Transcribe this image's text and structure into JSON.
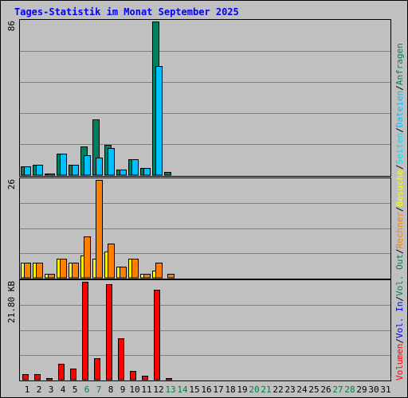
{
  "title": "Tages-Statistik im Monat September 2025",
  "colors": {
    "background": "#c0c0c0",
    "title": "#0000ff",
    "anfragen": "#008060",
    "dateien": "#00c0ff",
    "seiten": "#00e0ff",
    "besuche": "#ffff00",
    "rechner": "#ff8000",
    "volume": "#ff0000",
    "gridline": "#808080",
    "weekend_label": "#008040",
    "weekday_label": "#000000",
    "vol_out": "#008060",
    "vol_in": "#0000ff"
  },
  "legend": {
    "separator": "/",
    "anfragen": "Anfragen",
    "dateien": "Dateien",
    "seiten": "Seiten",
    "besuche": "Besuche",
    "rechner": "Rechner",
    "vol_out": "Vol. Out",
    "vol_in": "Vol. In",
    "volumen": "Volumen"
  },
  "chart_data": [
    {
      "type": "bar",
      "panel": "hits",
      "y_max_label": "86",
      "ylim": [
        0,
        86
      ],
      "categories": [
        "1",
        "2",
        "3",
        "4",
        "5",
        "6",
        "7",
        "8",
        "9",
        "10",
        "11",
        "12",
        "13",
        "14",
        "15",
        "16",
        "17",
        "18",
        "19",
        "20",
        "21",
        "22",
        "23",
        "24",
        "25",
        "26",
        "27",
        "28",
        "29",
        "30",
        "31"
      ],
      "series": [
        {
          "name": "Anfragen",
          "values": [
            5,
            6,
            1,
            12,
            6,
            16,
            31,
            17,
            3,
            9,
            4,
            86,
            2,
            0,
            0,
            0,
            0,
            0,
            0,
            0,
            0,
            0,
            0,
            0,
            0,
            0,
            0,
            0,
            0,
            0,
            0
          ]
        },
        {
          "name": "Dateien",
          "values": [
            5,
            6,
            1,
            12,
            6,
            11,
            10,
            15,
            3,
            9,
            4,
            61,
            0,
            0,
            0,
            0,
            0,
            0,
            0,
            0,
            0,
            0,
            0,
            0,
            0,
            0,
            0,
            0,
            0,
            0,
            0
          ]
        }
      ]
    },
    {
      "type": "bar",
      "panel": "visits",
      "y_max_label": "26",
      "ylim": [
        0,
        26
      ],
      "categories": [
        "1",
        "2",
        "3",
        "4",
        "5",
        "6",
        "7",
        "8",
        "9",
        "10",
        "11",
        "12",
        "13",
        "14",
        "15",
        "16",
        "17",
        "18",
        "19",
        "20",
        "21",
        "22",
        "23",
        "24",
        "25",
        "26",
        "27",
        "28",
        "29",
        "30",
        "31"
      ],
      "series": [
        {
          "name": "Besuche",
          "values": [
            4,
            4,
            1,
            5,
            4,
            6,
            5,
            7,
            3,
            5,
            1,
            2,
            0,
            0,
            0,
            0,
            0,
            0,
            0,
            0,
            0,
            0,
            0,
            0,
            0,
            0,
            0,
            0,
            0,
            0,
            0
          ]
        },
        {
          "name": "Rechner",
          "values": [
            4,
            4,
            1,
            5,
            4,
            11,
            26,
            9,
            3,
            5,
            1,
            4,
            1,
            0,
            0,
            0,
            0,
            0,
            0,
            0,
            0,
            0,
            0,
            0,
            0,
            0,
            0,
            0,
            0,
            0,
            0
          ]
        }
      ]
    },
    {
      "type": "bar",
      "panel": "volume",
      "y_max_label": "21.80 KB",
      "ylim": [
        0,
        21.8
      ],
      "categories": [
        "1",
        "2",
        "3",
        "4",
        "5",
        "6",
        "7",
        "8",
        "9",
        "10",
        "11",
        "12",
        "13",
        "14",
        "15",
        "16",
        "17",
        "18",
        "19",
        "20",
        "21",
        "22",
        "23",
        "24",
        "25",
        "26",
        "27",
        "28",
        "29",
        "30",
        "31"
      ],
      "series": [
        {
          "name": "Volumen",
          "values": [
            1.2,
            1.3,
            0.4,
            3.5,
            2.5,
            21.8,
            4.8,
            21.3,
            9.3,
            2.0,
            0.9,
            20.0,
            0.3,
            0,
            0,
            0,
            0,
            0,
            0,
            0,
            0,
            0,
            0,
            0,
            0,
            0,
            0,
            0,
            0,
            0,
            0
          ]
        }
      ]
    }
  ],
  "x_axis": {
    "labels": [
      "1",
      "2",
      "3",
      "4",
      "5",
      "6",
      "7",
      "8",
      "9",
      "10",
      "11",
      "12",
      "13",
      "14",
      "15",
      "16",
      "17",
      "18",
      "19",
      "20",
      "21",
      "22",
      "23",
      "24",
      "25",
      "26",
      "27",
      "28",
      "29",
      "30",
      "31"
    ],
    "weekend": [
      6,
      7,
      13,
      14,
      20,
      21,
      27,
      28
    ]
  }
}
